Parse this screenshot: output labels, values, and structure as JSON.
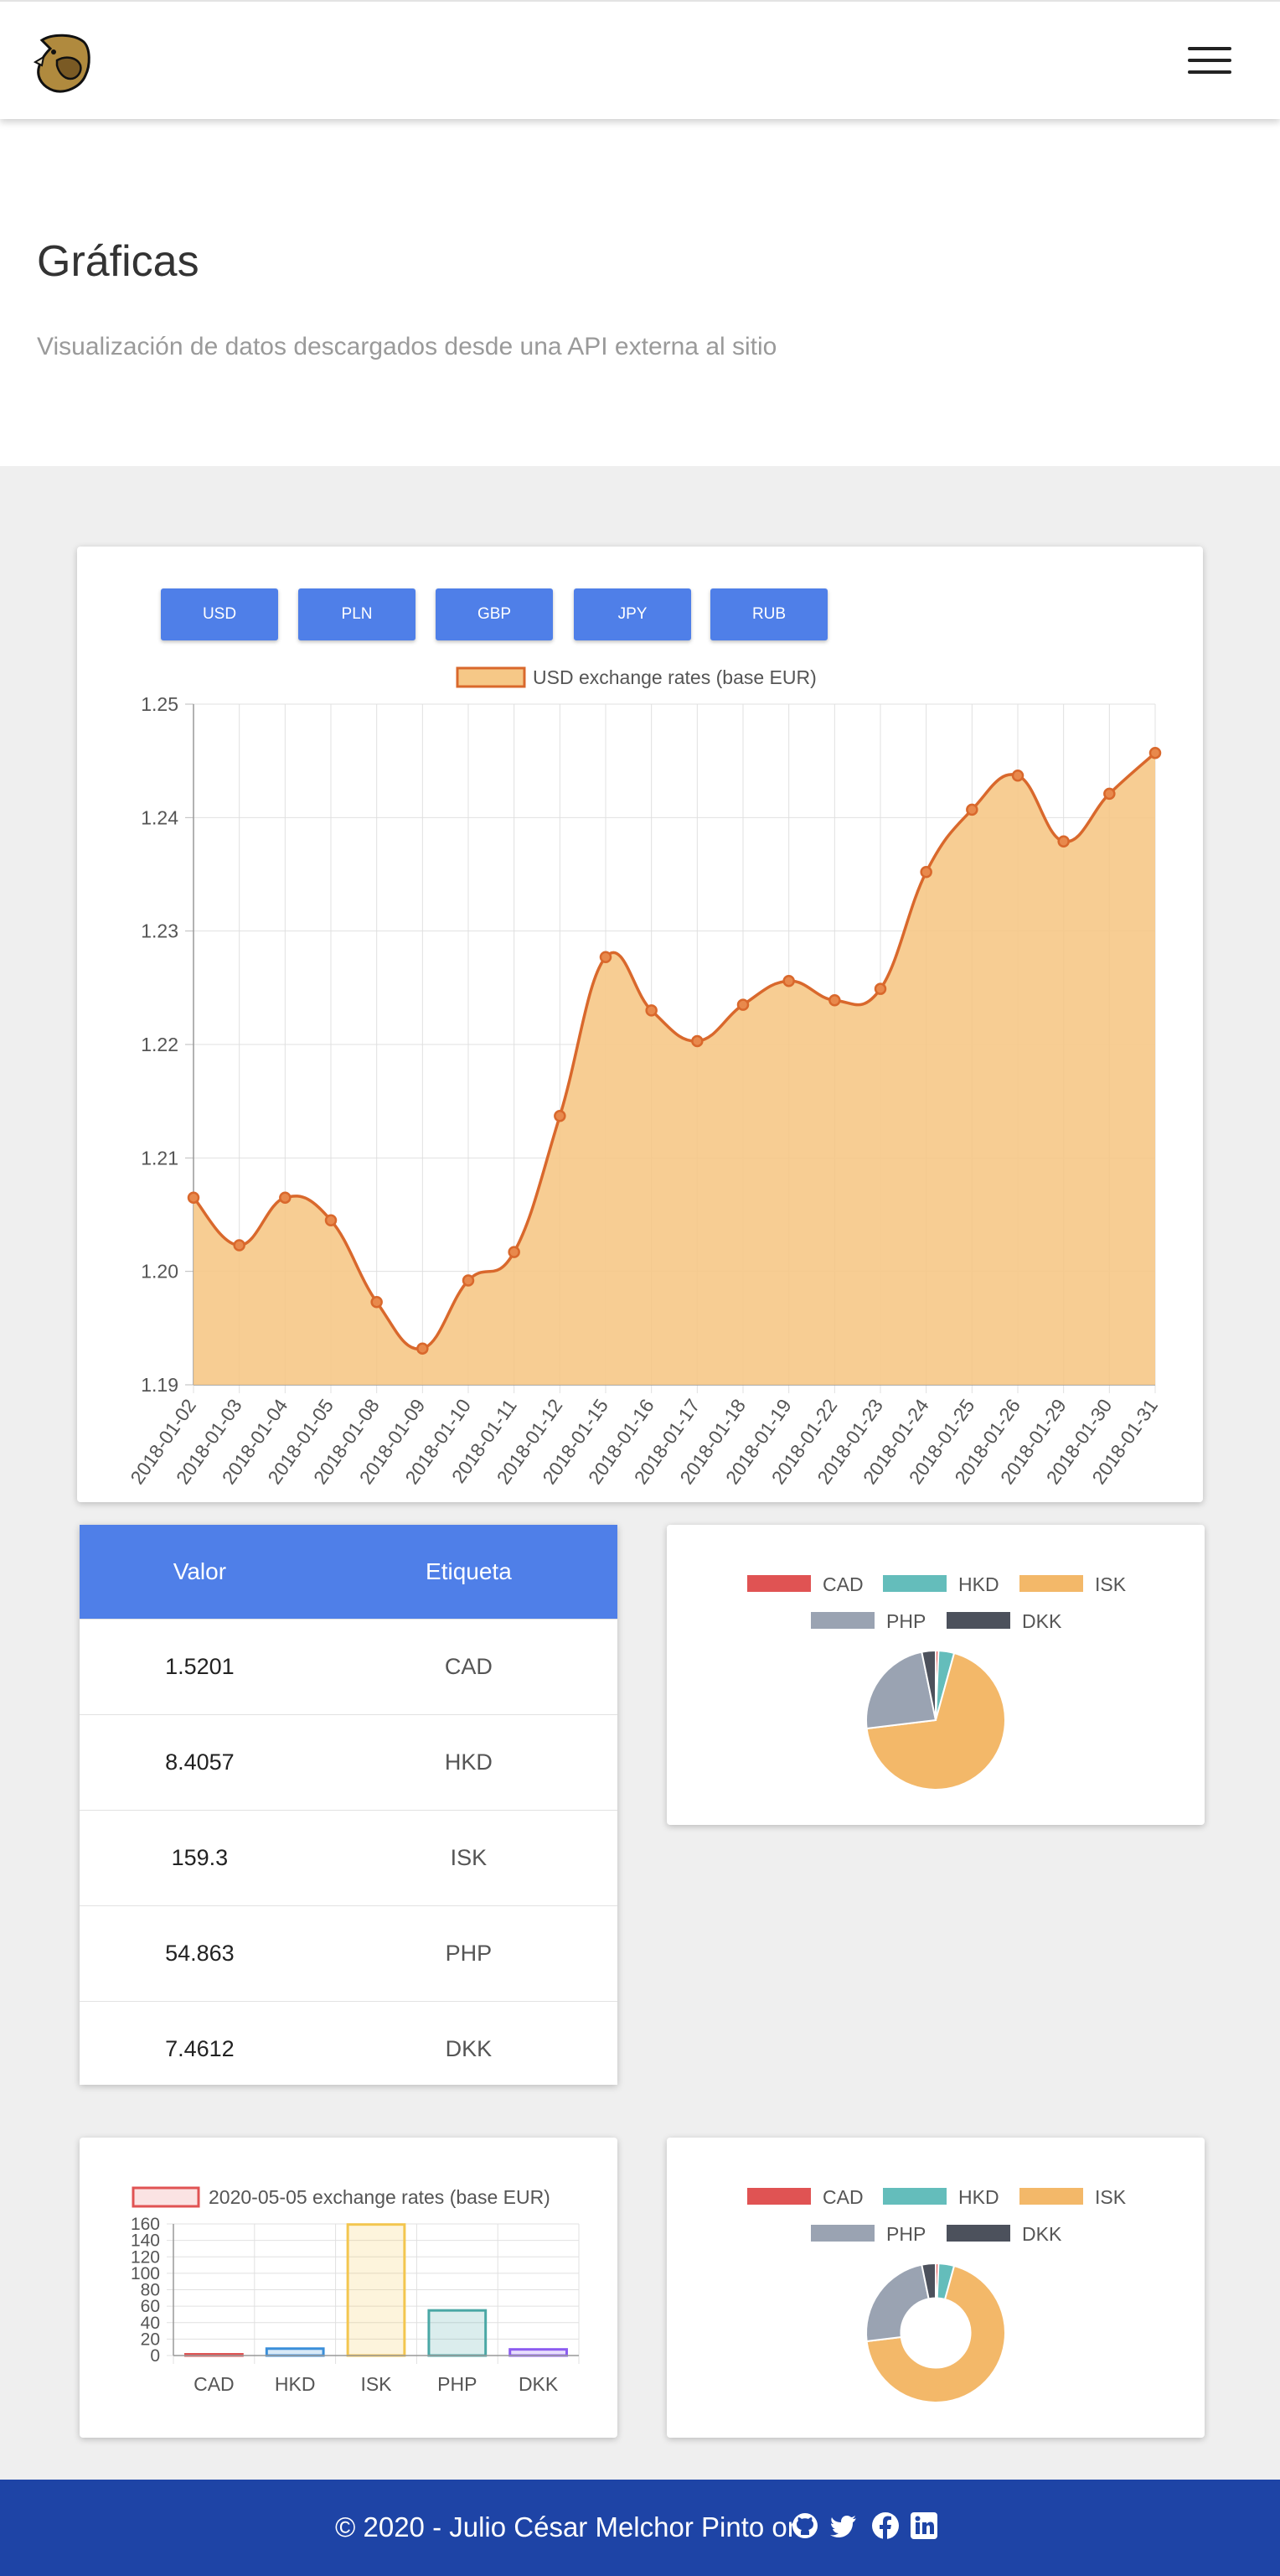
{
  "header": {
    "logo_icon": "beaver-logo-icon",
    "menu_icon": "hamburger-menu-icon"
  },
  "hero": {
    "title": "Gráficas",
    "subtitle": "Visualización de datos descargados desde una API externa al sitio"
  },
  "currency_buttons": [
    "USD",
    "PLN",
    "GBP",
    "JPY",
    "RUB"
  ],
  "table": {
    "headers": [
      "Valor",
      "Etiqueta"
    ],
    "rows": [
      {
        "value": "1.5201",
        "label": "CAD"
      },
      {
        "value": "8.4057",
        "label": "HKD"
      },
      {
        "value": "159.3",
        "label": "ISK"
      },
      {
        "value": "54.863",
        "label": "PHP"
      },
      {
        "value": "7.4612",
        "label": "DKK"
      }
    ]
  },
  "footer": {
    "text": "© 2020 - Julio César Melchor Pinto on",
    "icons": [
      "github-icon",
      "twitter-icon",
      "facebook-icon",
      "linkedin-icon"
    ]
  },
  "colors": {
    "accent": "#4f7fe8",
    "footer": "#1e44a6",
    "line": "#d9682c",
    "area": "#f6c887"
  },
  "chart_data": [
    {
      "type": "line",
      "title": "",
      "legend": "USD exchange rates (base EUR)",
      "categories": [
        "2018-01-02",
        "2018-01-03",
        "2018-01-04",
        "2018-01-05",
        "2018-01-08",
        "2018-01-09",
        "2018-01-10",
        "2018-01-11",
        "2018-01-12",
        "2018-01-15",
        "2018-01-16",
        "2018-01-17",
        "2018-01-18",
        "2018-01-19",
        "2018-01-22",
        "2018-01-23",
        "2018-01-24",
        "2018-01-25",
        "2018-01-26",
        "2018-01-29",
        "2018-01-30",
        "2018-01-31"
      ],
      "values": [
        1.2065,
        1.2023,
        1.2065,
        1.2045,
        1.1973,
        1.1932,
        1.1992,
        1.2017,
        1.2137,
        1.2277,
        1.223,
        1.2203,
        1.2235,
        1.2256,
        1.2239,
        1.2249,
        1.2352,
        1.2407,
        1.2437,
        1.2379,
        1.2421,
        1.2457
      ],
      "ylim": [
        1.19,
        1.25
      ],
      "yticks": [
        1.19,
        1.2,
        1.21,
        1.22,
        1.23,
        1.24,
        1.25
      ],
      "fill": true,
      "grid": true
    },
    {
      "type": "pie",
      "labels": [
        "CAD",
        "HKD",
        "ISK",
        "PHP",
        "DKK"
      ],
      "values": [
        1.5201,
        8.4057,
        159.3,
        54.863,
        7.4612
      ],
      "colors": [
        "#e05353",
        "#64bdbb",
        "#f3b869",
        "#9aa3b2",
        "#4c515c"
      ]
    },
    {
      "type": "bar",
      "legend": "2020-05-05 exchange rates (base EUR)",
      "categories": [
        "CAD",
        "HKD",
        "ISK",
        "PHP",
        "DKK"
      ],
      "values": [
        1.5201,
        8.4057,
        159.3,
        54.863,
        7.4612
      ],
      "ylim": [
        0,
        160
      ],
      "yticks": [
        0,
        20,
        40,
        60,
        80,
        100,
        120,
        140,
        160
      ],
      "colors": [
        "#e05353",
        "#3b8fd9",
        "#f3c64f",
        "#4aa7a5",
        "#8c5cf0"
      ]
    },
    {
      "type": "doughnut",
      "labels": [
        "CAD",
        "HKD",
        "ISK",
        "PHP",
        "DKK"
      ],
      "values": [
        1.5201,
        8.4057,
        159.3,
        54.863,
        7.4612
      ],
      "colors": [
        "#e05353",
        "#64bdbb",
        "#f3b869",
        "#9aa3b2",
        "#4c515c"
      ]
    }
  ]
}
